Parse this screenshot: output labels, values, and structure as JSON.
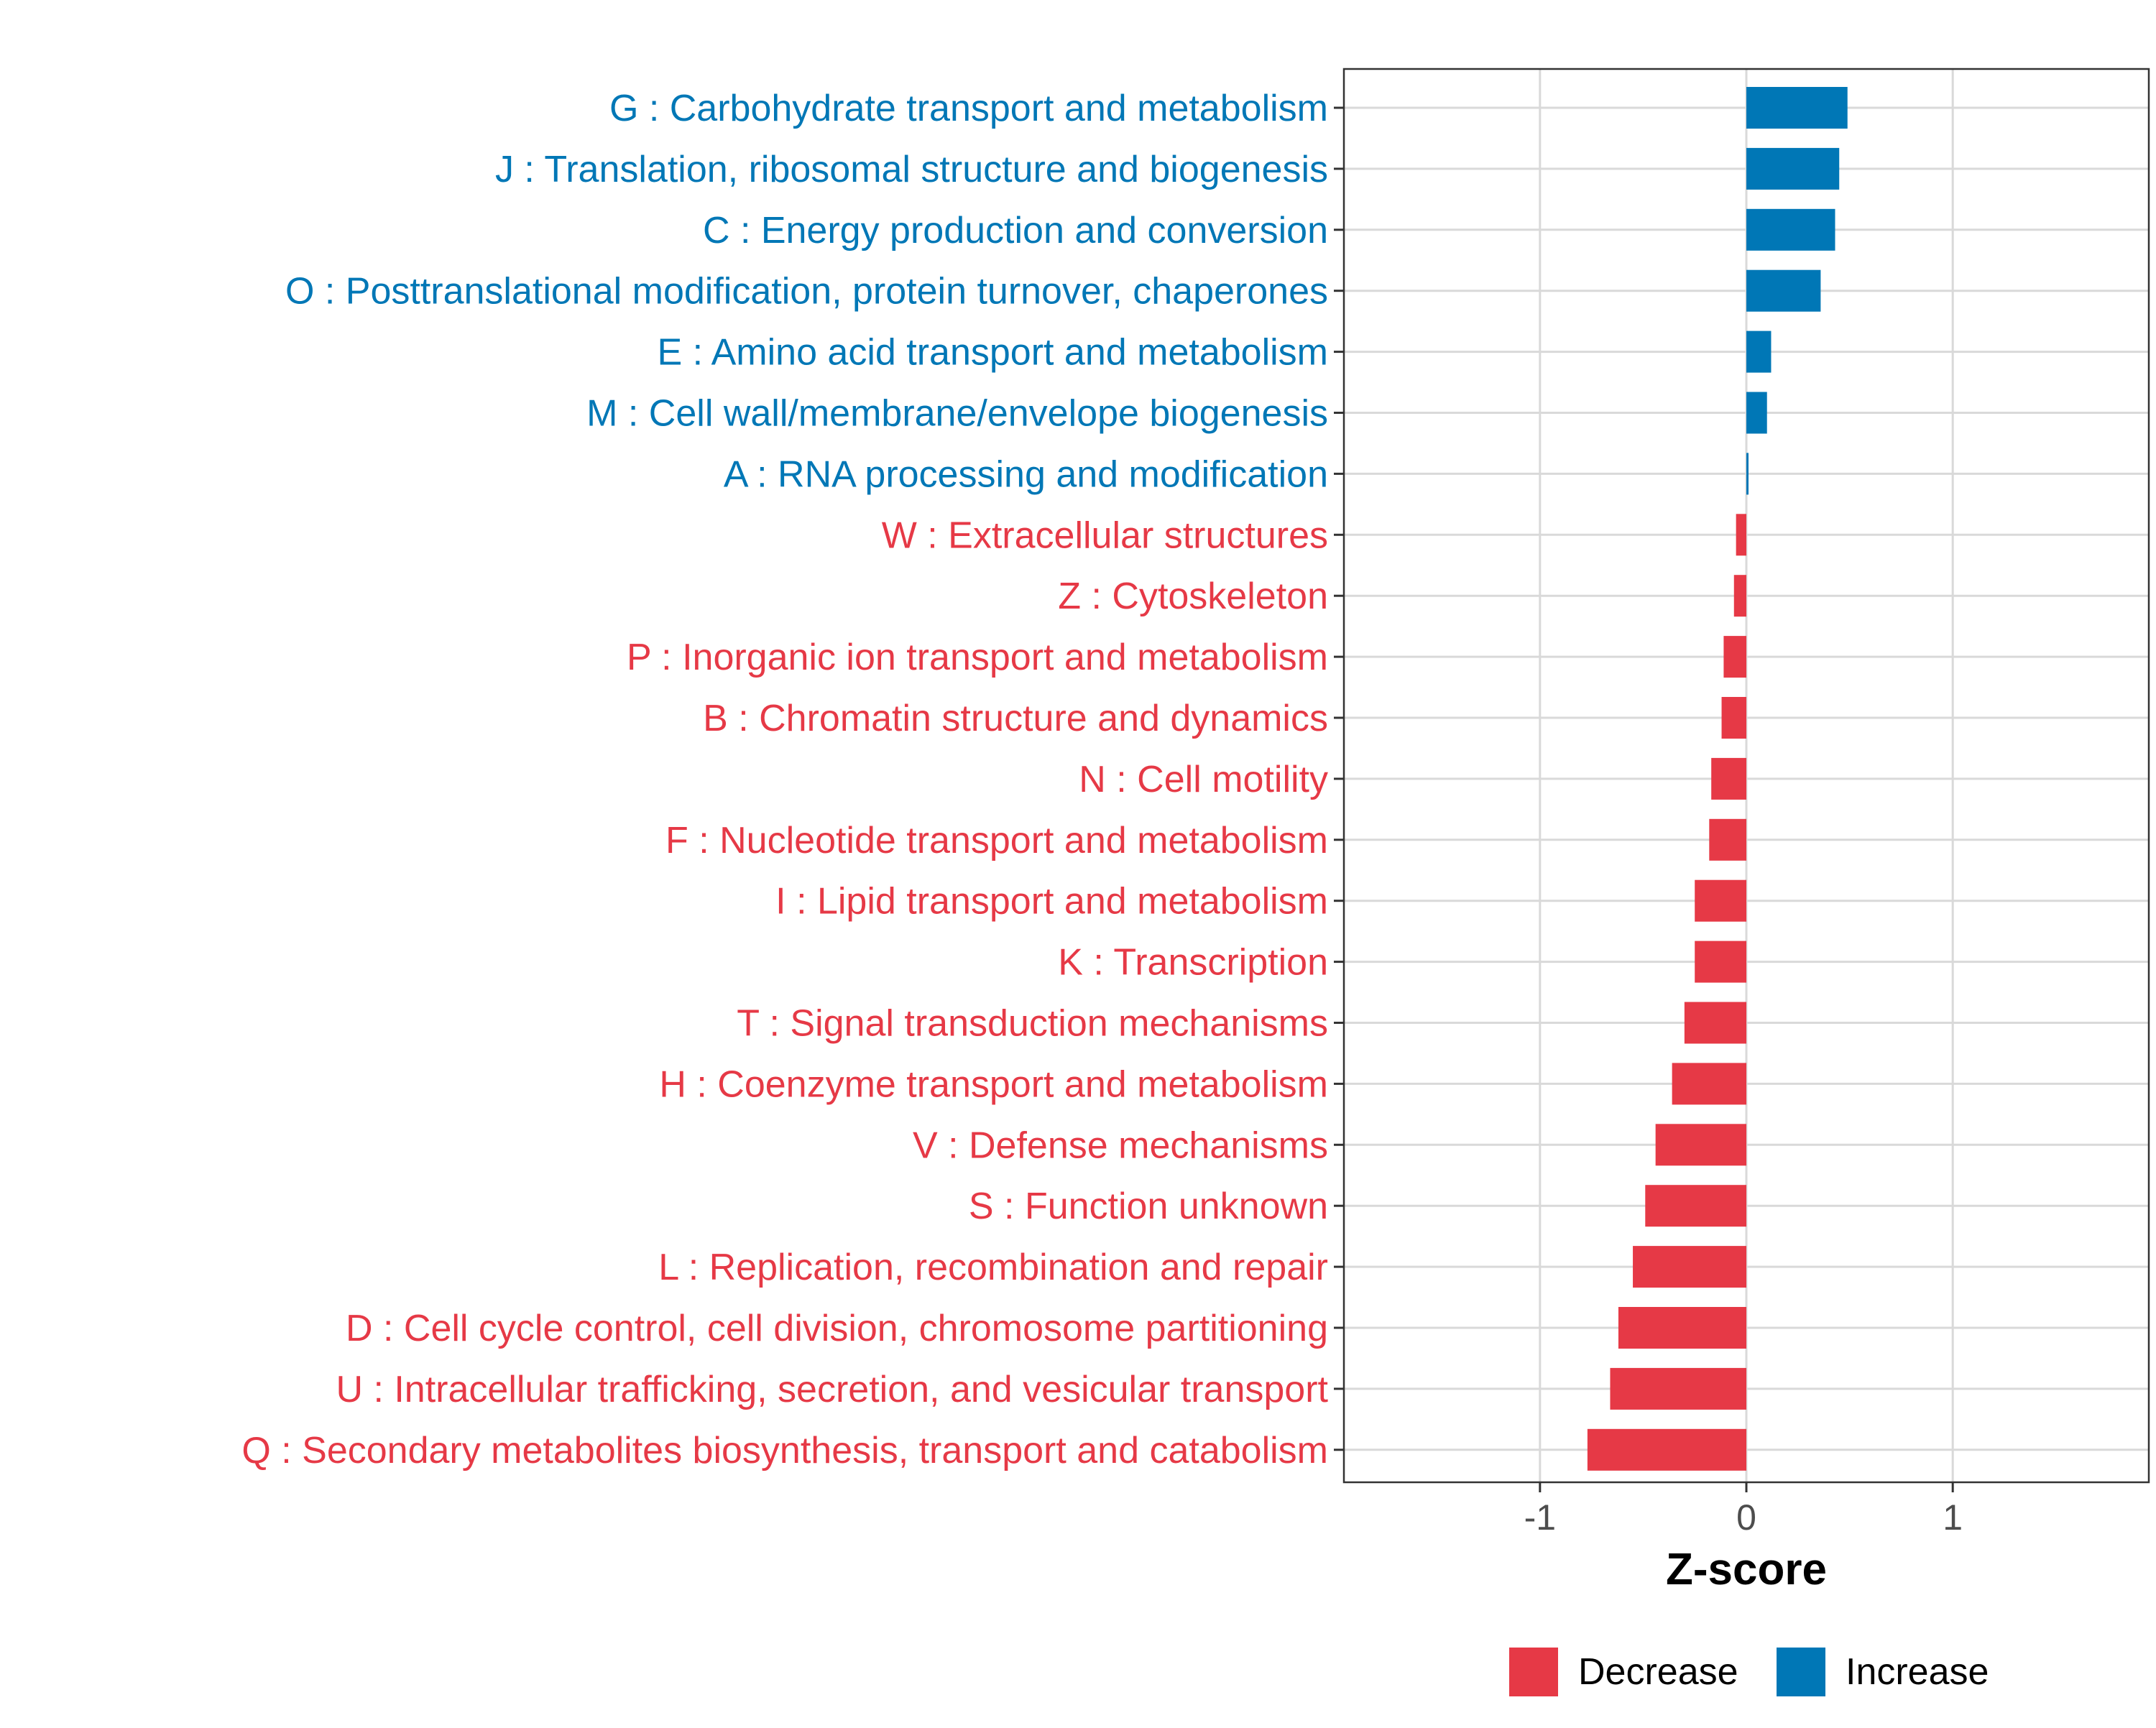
{
  "chart_data": {
    "type": "bar",
    "orientation": "horizontal",
    "xlabel": "Z-score",
    "xlim": [
      -1.95,
      1.95
    ],
    "xticks": [
      -1,
      0,
      1
    ],
    "xtick_labels": [
      "-1",
      "0",
      "1"
    ],
    "grid": true,
    "legend_position": "bottom",
    "colors": {
      "Decrease": "#e63946",
      "Increase": "#0077b6"
    },
    "legend": [
      {
        "label": "Decrease",
        "color": "#e63946"
      },
      {
        "label": "Increase",
        "color": "#0077b6"
      }
    ],
    "categories": [
      "G : Carbohydrate transport and metabolism",
      "J : Translation, ribosomal structure and biogenesis",
      "C : Energy production and conversion",
      "O : Posttranslational modification, protein turnover, chaperones",
      "E : Amino acid transport and metabolism",
      "M : Cell wall/membrane/envelope biogenesis",
      "A : RNA processing and modification",
      "W : Extracellular structures",
      "Z : Cytoskeleton",
      "P : Inorganic ion transport and metabolism",
      "B : Chromatin structure and dynamics",
      "N : Cell motility",
      "F : Nucleotide transport and metabolism",
      "I : Lipid transport and metabolism",
      "K : Transcription",
      "T : Signal transduction mechanisms",
      "H : Coenzyme transport and metabolism",
      "V : Defense mechanisms",
      "S : Function unknown",
      "L : Replication, recombination and repair",
      "D : Cell cycle control, cell division, chromosome partitioning",
      "U : Intracellular trafficking, secretion, and vesicular transport",
      "Q : Secondary metabolites biosynthesis, transport and catabolism"
    ],
    "values": [
      0.49,
      0.45,
      0.43,
      0.36,
      0.12,
      0.1,
      0.01,
      -0.05,
      -0.06,
      -0.11,
      -0.12,
      -0.17,
      -0.18,
      -0.25,
      -0.25,
      -0.3,
      -0.36,
      -0.44,
      -0.49,
      -0.55,
      -0.62,
      -0.66,
      -0.77
    ],
    "direction": [
      "Increase",
      "Increase",
      "Increase",
      "Increase",
      "Increase",
      "Increase",
      "Increase",
      "Decrease",
      "Decrease",
      "Decrease",
      "Decrease",
      "Decrease",
      "Decrease",
      "Decrease",
      "Decrease",
      "Decrease",
      "Decrease",
      "Decrease",
      "Decrease",
      "Decrease",
      "Decrease",
      "Decrease",
      "Decrease"
    ]
  }
}
